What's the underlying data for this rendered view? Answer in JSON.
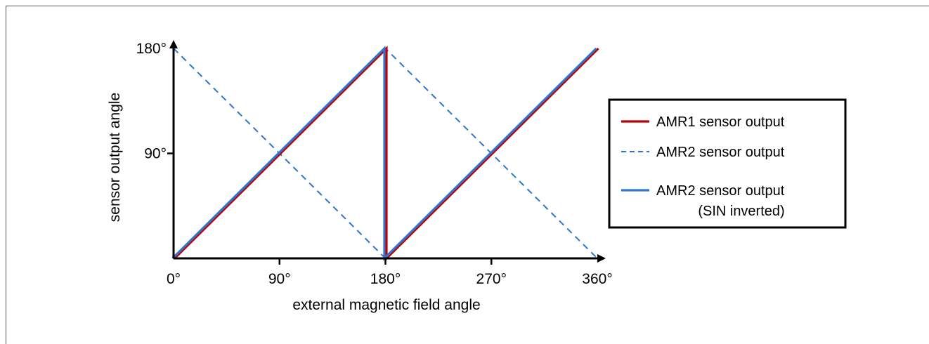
{
  "chart_data": {
    "type": "line",
    "title": "",
    "xlabel": "external magnetic field angle",
    "ylabel": "sensor output angle",
    "xlim": [
      0,
      360
    ],
    "ylim": [
      0,
      180
    ],
    "x_ticks": [
      "0°",
      "90°",
      "180°",
      "270°",
      "360°"
    ],
    "y_ticks": [
      "90°",
      "180°"
    ],
    "grid": false,
    "legend_position": "right",
    "series": [
      {
        "name": "AMR1 sensor output",
        "style": "solid",
        "color": "#c00000",
        "points": [
          [
            0,
            0
          ],
          [
            180,
            180
          ],
          [
            180,
            0
          ],
          [
            360,
            180
          ]
        ]
      },
      {
        "name": "AMR2 sensor output",
        "style": "dashed",
        "color": "#2e75cf",
        "points": [
          [
            0,
            180
          ],
          [
            180,
            0
          ],
          [
            180,
            180
          ],
          [
            360,
            0
          ]
        ]
      },
      {
        "name": "AMR2 sensor output (SIN inverted)",
        "label_lines": [
          "AMR2 sensor output",
          "(SIN inverted)"
        ],
        "style": "solid",
        "color": "#2e75cf",
        "points": [
          [
            0,
            0
          ],
          [
            180,
            180
          ],
          [
            180,
            0
          ],
          [
            360,
            180
          ]
        ]
      }
    ]
  }
}
